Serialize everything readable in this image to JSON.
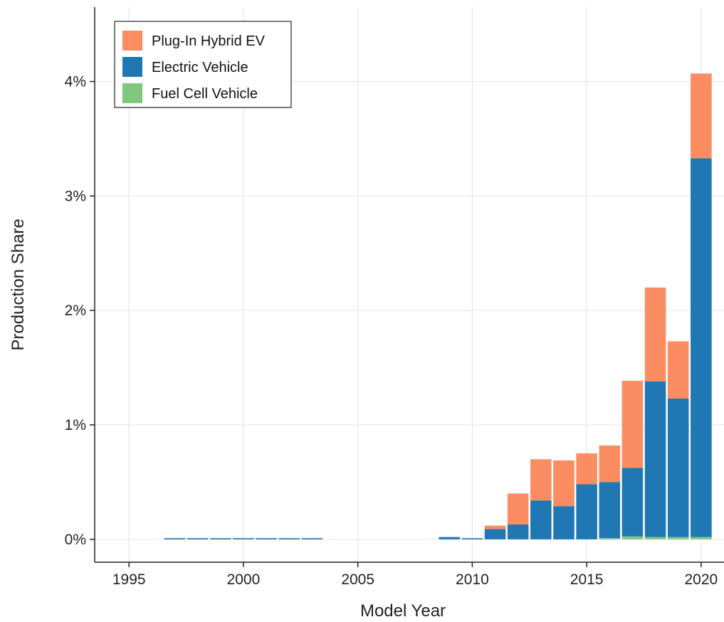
{
  "chart_data": {
    "type": "bar",
    "stacked": true,
    "title": "",
    "xlabel": "Model Year",
    "ylabel": "Production Share",
    "xlim": [
      1993.5,
      2021
    ],
    "ylim": [
      -0.002,
      0.0465
    ],
    "x_ticks": [
      1995,
      2000,
      2005,
      2010,
      2015,
      2020
    ],
    "y_ticks": [
      0,
      0.01,
      0.02,
      0.03,
      0.04
    ],
    "y_tick_labels": [
      "0%",
      "1%",
      "2%",
      "3%",
      "4%"
    ],
    "grid": true,
    "legend_position": "top-left",
    "x": [
      1997,
      1998,
      1999,
      2000,
      2001,
      2002,
      2003,
      2009,
      2010,
      2011,
      2012,
      2013,
      2014,
      2015,
      2016,
      2017,
      2018,
      2019,
      2020
    ],
    "series": [
      {
        "name": "Fuel Cell Vehicle",
        "color": "#7fc97f",
        "values": [
          0,
          0,
          0,
          0,
          0,
          0,
          0,
          0,
          0,
          0,
          0,
          0,
          0,
          1e-05,
          0.0001,
          0.00025,
          0.0002,
          0.0002,
          0.0002
        ]
      },
      {
        "name": "Electric Vehicle",
        "color": "#1f77b4",
        "values": [
          0.0001,
          0.0001,
          0.0001,
          0.0001,
          0.0001,
          0.0001,
          0.0001,
          0.0002,
          0.0001,
          0.0009,
          0.0013,
          0.0034,
          0.0029,
          0.0048,
          0.0049,
          0.006,
          0.0136,
          0.0121,
          0.0331
        ]
      },
      {
        "name": "Plug-In Hybrid EV",
        "color": "#fc8d62",
        "values": [
          0,
          0,
          0,
          0,
          0,
          0,
          0,
          0,
          0,
          0.0003,
          0.0027,
          0.0036,
          0.004,
          0.0027,
          0.0032,
          0.0076,
          0.0082,
          0.005,
          0.0074
        ]
      }
    ],
    "legend_order": [
      "Plug-In Hybrid EV",
      "Electric Vehicle",
      "Fuel Cell Vehicle"
    ]
  }
}
